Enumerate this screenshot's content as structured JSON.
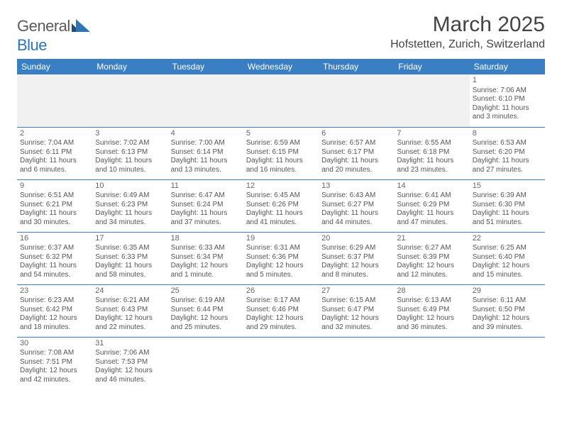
{
  "brand": {
    "name_gray": "General",
    "name_blue": "Blue"
  },
  "title": "March 2025",
  "location": "Hofstetten, Zurich, Switzerland",
  "colors": {
    "header_bg": "#3a7fc4",
    "header_text": "#ffffff",
    "cell_border": "#3a7fc4",
    "empty_bg": "#f1f1f1",
    "text": "#555555",
    "logo_gray": "#5a5a5a",
    "logo_blue": "#2e75b6"
  },
  "weekdays": [
    "Sunday",
    "Monday",
    "Tuesday",
    "Wednesday",
    "Thursday",
    "Friday",
    "Saturday"
  ],
  "weeks": [
    [
      null,
      null,
      null,
      null,
      null,
      null,
      {
        "n": "1",
        "sr": "7:06 AM",
        "ss": "6:10 PM",
        "dl": "11 hours and 3 minutes."
      }
    ],
    [
      {
        "n": "2",
        "sr": "7:04 AM",
        "ss": "6:11 PM",
        "dl": "11 hours and 6 minutes."
      },
      {
        "n": "3",
        "sr": "7:02 AM",
        "ss": "6:13 PM",
        "dl": "11 hours and 10 minutes."
      },
      {
        "n": "4",
        "sr": "7:00 AM",
        "ss": "6:14 PM",
        "dl": "11 hours and 13 minutes."
      },
      {
        "n": "5",
        "sr": "6:59 AM",
        "ss": "6:15 PM",
        "dl": "11 hours and 16 minutes."
      },
      {
        "n": "6",
        "sr": "6:57 AM",
        "ss": "6:17 PM",
        "dl": "11 hours and 20 minutes."
      },
      {
        "n": "7",
        "sr": "6:55 AM",
        "ss": "6:18 PM",
        "dl": "11 hours and 23 minutes."
      },
      {
        "n": "8",
        "sr": "6:53 AM",
        "ss": "6:20 PM",
        "dl": "11 hours and 27 minutes."
      }
    ],
    [
      {
        "n": "9",
        "sr": "6:51 AM",
        "ss": "6:21 PM",
        "dl": "11 hours and 30 minutes."
      },
      {
        "n": "10",
        "sr": "6:49 AM",
        "ss": "6:23 PM",
        "dl": "11 hours and 34 minutes."
      },
      {
        "n": "11",
        "sr": "6:47 AM",
        "ss": "6:24 PM",
        "dl": "11 hours and 37 minutes."
      },
      {
        "n": "12",
        "sr": "6:45 AM",
        "ss": "6:26 PM",
        "dl": "11 hours and 41 minutes."
      },
      {
        "n": "13",
        "sr": "6:43 AM",
        "ss": "6:27 PM",
        "dl": "11 hours and 44 minutes."
      },
      {
        "n": "14",
        "sr": "6:41 AM",
        "ss": "6:29 PM",
        "dl": "11 hours and 47 minutes."
      },
      {
        "n": "15",
        "sr": "6:39 AM",
        "ss": "6:30 PM",
        "dl": "11 hours and 51 minutes."
      }
    ],
    [
      {
        "n": "16",
        "sr": "6:37 AM",
        "ss": "6:32 PM",
        "dl": "11 hours and 54 minutes."
      },
      {
        "n": "17",
        "sr": "6:35 AM",
        "ss": "6:33 PM",
        "dl": "11 hours and 58 minutes."
      },
      {
        "n": "18",
        "sr": "6:33 AM",
        "ss": "6:34 PM",
        "dl": "12 hours and 1 minute."
      },
      {
        "n": "19",
        "sr": "6:31 AM",
        "ss": "6:36 PM",
        "dl": "12 hours and 5 minutes."
      },
      {
        "n": "20",
        "sr": "6:29 AM",
        "ss": "6:37 PM",
        "dl": "12 hours and 8 minutes."
      },
      {
        "n": "21",
        "sr": "6:27 AM",
        "ss": "6:39 PM",
        "dl": "12 hours and 12 minutes."
      },
      {
        "n": "22",
        "sr": "6:25 AM",
        "ss": "6:40 PM",
        "dl": "12 hours and 15 minutes."
      }
    ],
    [
      {
        "n": "23",
        "sr": "6:23 AM",
        "ss": "6:42 PM",
        "dl": "12 hours and 18 minutes."
      },
      {
        "n": "24",
        "sr": "6:21 AM",
        "ss": "6:43 PM",
        "dl": "12 hours and 22 minutes."
      },
      {
        "n": "25",
        "sr": "6:19 AM",
        "ss": "6:44 PM",
        "dl": "12 hours and 25 minutes."
      },
      {
        "n": "26",
        "sr": "6:17 AM",
        "ss": "6:46 PM",
        "dl": "12 hours and 29 minutes."
      },
      {
        "n": "27",
        "sr": "6:15 AM",
        "ss": "6:47 PM",
        "dl": "12 hours and 32 minutes."
      },
      {
        "n": "28",
        "sr": "6:13 AM",
        "ss": "6:49 PM",
        "dl": "12 hours and 36 minutes."
      },
      {
        "n": "29",
        "sr": "6:11 AM",
        "ss": "6:50 PM",
        "dl": "12 hours and 39 minutes."
      }
    ],
    [
      {
        "n": "30",
        "sr": "7:08 AM",
        "ss": "7:51 PM",
        "dl": "12 hours and 42 minutes."
      },
      {
        "n": "31",
        "sr": "7:06 AM",
        "ss": "7:53 PM",
        "dl": "12 hours and 46 minutes."
      },
      null,
      null,
      null,
      null,
      null
    ]
  ],
  "labels": {
    "sunrise": "Sunrise:",
    "sunset": "Sunset:",
    "daylight": "Daylight:"
  }
}
